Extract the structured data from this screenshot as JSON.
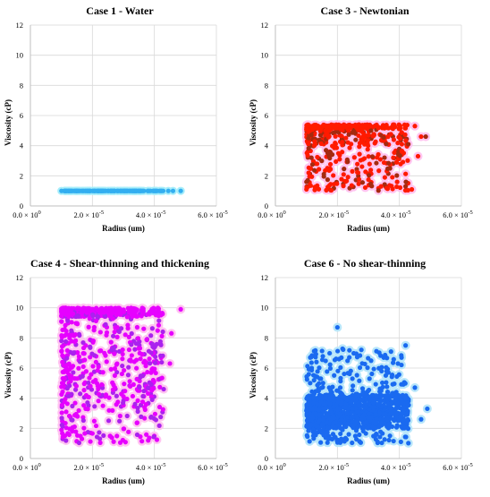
{
  "chart_data": [
    {
      "type": "scatter",
      "title": "Case 1 - Water",
      "xlabel": "Radius (um)",
      "ylabel": "Viscosity (cP)",
      "xlim": [
        0,
        6e-05
      ],
      "ylim": [
        0,
        12
      ],
      "xticks": [
        0,
        2e-05,
        4e-05,
        6e-05
      ],
      "xtick_labels": [
        [
          "0.0 × 10",
          "0"
        ],
        [
          "2.0 × 10",
          "-5"
        ],
        [
          "4.0 × 10",
          "-5"
        ],
        [
          "6.0 × 10",
          "-5"
        ]
      ],
      "yticks": [
        0,
        2,
        4,
        6,
        8,
        10,
        12
      ],
      "grid": true,
      "color": "#33aef0",
      "halo_color": "#a8eefa",
      "points_desc": "dense band",
      "x_range": [
        1e-05,
        4.3e-05
      ],
      "y_range": [
        1.0,
        1.0
      ],
      "outliers": [
        [
          4.45e-05,
          1.0
        ],
        [
          4.6e-05,
          1.0
        ],
        [
          4.85e-05,
          1.0
        ]
      ],
      "point_count": 160,
      "shape": "band",
      "seed": 11
    },
    {
      "type": "scatter",
      "title": "Case 3 - Newtonian",
      "xlabel": "Radius (um)",
      "ylabel": "Viscosity (cP)",
      "xlim": [
        0,
        6e-05
      ],
      "ylim": [
        0,
        12
      ],
      "xticks": [
        0,
        2e-05,
        4e-05,
        6e-05
      ],
      "xtick_labels": [
        [
          "0.0 × 10",
          "0"
        ],
        [
          "2.0 × 10",
          "-5"
        ],
        [
          "4.0 × 10",
          "-5"
        ],
        [
          "6.0 × 10",
          "-5"
        ]
      ],
      "yticks": [
        0,
        2,
        4,
        6,
        8,
        10,
        12
      ],
      "grid": true,
      "color": "#ff1a00",
      "secondary_color": "#a52a10",
      "halo_color": "#ffc4f0",
      "x_range": [
        1e-05,
        4.3e-05
      ],
      "y_range": [
        1.0,
        5.4
      ],
      "outliers": [
        [
          4.5e-05,
          5.3
        ],
        [
          4.7e-05,
          4.6
        ],
        [
          4.85e-05,
          4.6
        ],
        [
          4.6e-05,
          3.3
        ],
        [
          4.4e-05,
          1.1
        ],
        [
          4.2e-05,
          1.3
        ]
      ],
      "point_count": 520,
      "shape": "newtonian",
      "seed": 23
    },
    {
      "type": "scatter",
      "title": "Case 4 - Shear-thinning and thickening",
      "xlabel": "Radius (um)",
      "ylabel": "Viscosity (cP)",
      "xlim": [
        0,
        6e-05
      ],
      "ylim": [
        0,
        12
      ],
      "xticks": [
        0,
        2e-05,
        4e-05,
        6e-05
      ],
      "xtick_labels": [
        [
          "0.0 × 10",
          "0"
        ],
        [
          "2.0 × 10",
          "-5"
        ],
        [
          "4.0 × 10",
          "-5"
        ],
        [
          "6.0 × 10",
          "-5"
        ]
      ],
      "yticks": [
        0,
        2,
        4,
        6,
        8,
        10,
        12
      ],
      "grid": true,
      "color": "#e600ff",
      "secondary_color": "#aa22ee",
      "halo_color": "#ffc4f0",
      "x_range": [
        1e-05,
        4.3e-05
      ],
      "y_range": [
        1.0,
        10.0
      ],
      "outliers": [
        [
          4.85e-05,
          9.9
        ],
        [
          4.55e-05,
          8.3
        ],
        [
          4.5e-05,
          6.3
        ],
        [
          4.3e-05,
          4.6
        ],
        [
          3.8e-05,
          1.2
        ]
      ],
      "point_count": 900,
      "shape": "thinning",
      "seed": 37
    },
    {
      "type": "scatter",
      "title": "Case 6 - No shear-thinning",
      "xlabel": "Radius (um)",
      "ylabel": "Viscosity (cP)",
      "xlim": [
        0,
        6e-05
      ],
      "ylim": [
        0,
        12
      ],
      "xticks": [
        0,
        2e-05,
        4e-05,
        6e-05
      ],
      "xtick_labels": [
        [
          "0.0 × 10",
          "0"
        ],
        [
          "2.0 × 10",
          "-5"
        ],
        [
          "4.0 × 10",
          "-5"
        ],
        [
          "6.0 × 10",
          "-5"
        ]
      ],
      "yticks": [
        0,
        2,
        4,
        6,
        8,
        10,
        12
      ],
      "grid": true,
      "color": "#1a6af0",
      "halo_color": "#b8e6fa",
      "x_range": [
        1e-05,
        4.3e-05
      ],
      "y_range": [
        1.0,
        8.7
      ],
      "outliers": [
        [
          4.9e-05,
          3.3
        ],
        [
          4.7e-05,
          2.6
        ],
        [
          4.5e-05,
          4.7
        ],
        [
          4.2e-05,
          7.5
        ],
        [
          2e-05,
          8.7
        ]
      ],
      "point_count": 1100,
      "shape": "no_thinning",
      "seed": 53
    }
  ]
}
